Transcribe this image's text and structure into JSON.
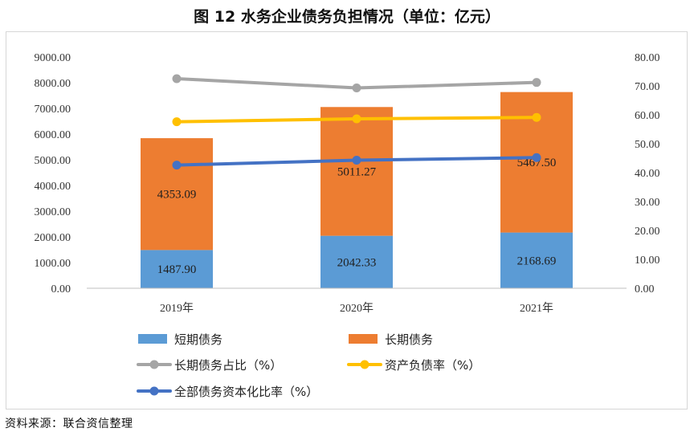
{
  "title": "图 12    水务企业债务负担情况（单位：亿元）",
  "source": "资料来源：联合资信整理",
  "chart_data": {
    "type": "bar",
    "stacked": true,
    "categories": [
      "2019年",
      "2020年",
      "2021年"
    ],
    "left_axis": {
      "range": [
        0,
        9000
      ],
      "ticks": [
        "0.00",
        "1000.00",
        "2000.00",
        "3000.00",
        "4000.00",
        "5000.00",
        "6000.00",
        "7000.00",
        "8000.00",
        "9000.00"
      ]
    },
    "right_axis": {
      "range": [
        0,
        80
      ],
      "ticks": [
        "0.00",
        "10.00",
        "20.00",
        "30.00",
        "40.00",
        "50.00",
        "60.00",
        "70.00",
        "80.00"
      ]
    },
    "series": [
      {
        "name": "短期债务",
        "kind": "bar",
        "axis": "left",
        "color": "#5b9bd5",
        "values": [
          1487.9,
          2042.33,
          2168.69
        ],
        "labels": [
          "1487.90",
          "2042.33",
          "2168.69"
        ]
      },
      {
        "name": "长期债务",
        "kind": "bar",
        "axis": "left",
        "color": "#ed7d31",
        "values": [
          4353.09,
          5011.27,
          5467.5
        ],
        "labels": [
          "4353.09",
          "5011.27",
          "5467.50"
        ]
      },
      {
        "name": "长期债务占比（%）",
        "kind": "line",
        "axis": "right",
        "color": "#a5a5a5",
        "values": [
          72.5,
          69.3,
          71.2
        ]
      },
      {
        "name": "资产负债率（%）",
        "kind": "line",
        "axis": "right",
        "color": "#ffc000",
        "values": [
          57.6,
          58.6,
          59.1
        ]
      },
      {
        "name": "全部债务资本化比率（%）",
        "kind": "line",
        "axis": "right",
        "color": "#4472c4",
        "values": [
          42.6,
          44.3,
          45.2
        ]
      }
    ],
    "legend_position": "bottom",
    "grid": false
  }
}
